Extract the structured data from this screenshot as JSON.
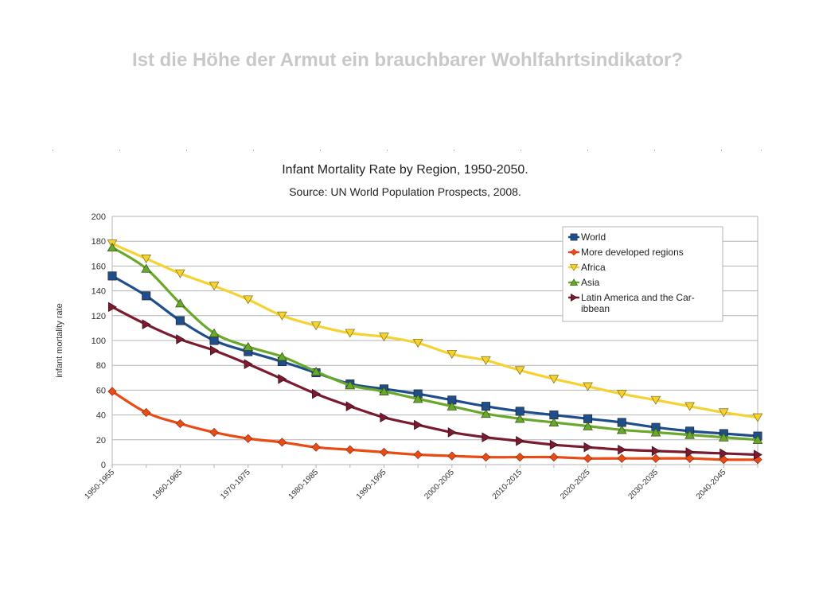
{
  "slide": {
    "title": "Ist die Höhe der Armut ein brauchbarer Wohlfahrtsindikator?"
  },
  "chart_data": {
    "type": "line",
    "title": "Infant Mortality Rate by Region, 1950-2050.",
    "subtitle": "Source: UN World Population Prospects, 2008.",
    "xlabel": "",
    "ylabel": "infant mortality rate",
    "ylim": [
      0,
      200
    ],
    "yticks": [
      0,
      20,
      40,
      60,
      80,
      100,
      120,
      140,
      160,
      180,
      200
    ],
    "grid": true,
    "legend_position": "top-right",
    "x": [
      "1950-1955",
      "1955-1960",
      "1960-1965",
      "1965-1970",
      "1970-1975",
      "1975-1980",
      "1980-1985",
      "1985-1990",
      "1990-1995",
      "1995-2000",
      "2000-2005",
      "2005-2010",
      "2010-2015",
      "2015-2020",
      "2020-2025",
      "2025-2030",
      "2030-2035",
      "2035-2040",
      "2040-2045",
      "2045-2050"
    ],
    "x_tick_labels": [
      "1950-1955",
      "",
      "1960-1965",
      "",
      "1970-1975",
      "",
      "1980-1985",
      "",
      "1990-1995",
      "",
      "2000-2005",
      "",
      "2010-2015",
      "",
      "2020-2025",
      "",
      "2030-2035",
      "",
      "2040-2045",
      ""
    ],
    "series": [
      {
        "name": "World",
        "marker": "square",
        "color": "#1f4e8c",
        "values": [
          152,
          136,
          116,
          100,
          91,
          83,
          74,
          65,
          61,
          57,
          52,
          47,
          43,
          40,
          37,
          34,
          30,
          27,
          25,
          23
        ]
      },
      {
        "name": "More developed regions",
        "marker": "diamond",
        "color": "#ea4b15",
        "values": [
          59,
          42,
          33,
          26,
          21,
          18,
          14,
          12,
          10,
          8,
          7,
          6,
          6,
          6,
          5,
          5,
          5,
          5,
          4,
          4
        ]
      },
      {
        "name": "Africa",
        "marker": "triangle-down",
        "color": "#f5d232",
        "values": [
          178,
          166,
          154,
          144,
          133,
          120,
          112,
          106,
          103,
          98,
          89,
          84,
          76,
          69,
          63,
          57,
          52,
          47,
          42,
          38
        ]
      },
      {
        "name": "Asia",
        "marker": "triangle-up",
        "color": "#69a82a",
        "values": [
          175,
          158,
          130,
          106,
          95,
          87,
          75,
          64,
          59,
          53,
          47,
          41,
          37,
          34,
          31,
          28,
          26,
          24,
          22,
          20
        ]
      },
      {
        "name": "Latin America and the Caribbean",
        "marker": "triangle-right",
        "color": "#7a1b2f",
        "values": [
          127,
          113,
          101,
          92,
          81,
          69,
          57,
          47,
          38,
          32,
          26,
          22,
          19,
          16,
          14,
          12,
          11,
          10,
          9,
          8
        ]
      }
    ],
    "legend_labels": [
      [
        "World"
      ],
      [
        "More developed regions"
      ],
      [
        "Africa"
      ],
      [
        "Asia"
      ],
      [
        "Latin America and the Car-",
        "ibbean"
      ]
    ]
  }
}
